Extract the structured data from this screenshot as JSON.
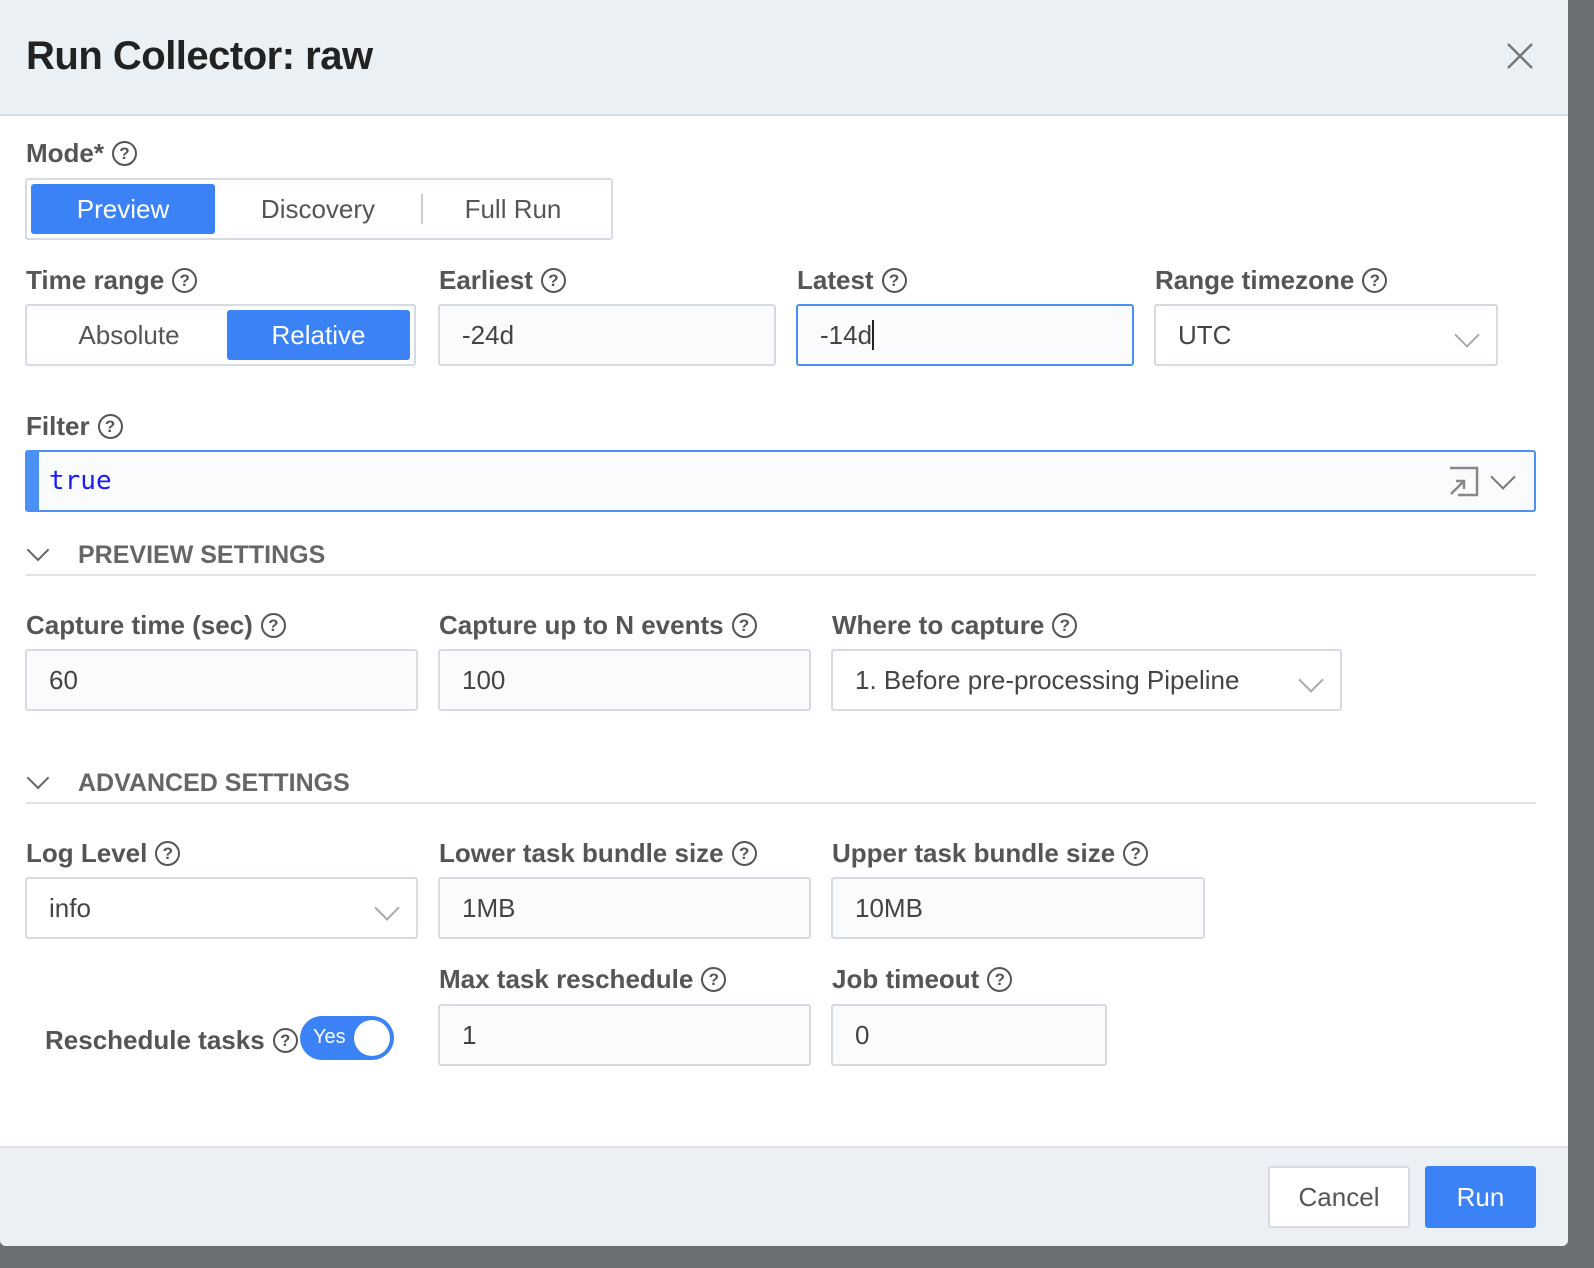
{
  "dialog": {
    "title": "Run Collector: raw"
  },
  "mode": {
    "label": "Mode*",
    "options": [
      "Preview",
      "Discovery",
      "Full Run"
    ],
    "selected": "Preview"
  },
  "time_range": {
    "label": "Time range",
    "options": [
      "Absolute",
      "Relative"
    ],
    "selected": "Relative"
  },
  "earliest": {
    "label": "Earliest",
    "value": "-24d"
  },
  "latest": {
    "label": "Latest",
    "value": "-14d"
  },
  "timezone": {
    "label": "Range timezone",
    "value": "UTC"
  },
  "filter": {
    "label": "Filter",
    "value": "true"
  },
  "preview_settings": {
    "title": "PREVIEW SETTINGS",
    "capture_time": {
      "label": "Capture time (sec)",
      "value": "60"
    },
    "capture_events": {
      "label": "Capture up to N events",
      "value": "100"
    },
    "where": {
      "label": "Where to capture",
      "value": "1. Before pre-processing Pipeline"
    }
  },
  "advanced_settings": {
    "title": "ADVANCED SETTINGS",
    "log_level": {
      "label": "Log Level",
      "value": "info"
    },
    "lower": {
      "label": "Lower task bundle size",
      "value": "1MB"
    },
    "upper": {
      "label": "Upper task bundle size",
      "value": "10MB"
    },
    "reschedule": {
      "label": "Reschedule tasks",
      "value": "Yes"
    },
    "max_reschedule": {
      "label": "Max task reschedule",
      "value": "1"
    },
    "job_timeout": {
      "label": "Job timeout",
      "value": "0"
    }
  },
  "footer": {
    "cancel": "Cancel",
    "run": "Run"
  },
  "colors": {
    "accent": "#3b82f6",
    "header_bg": "#ebf0f4",
    "filter_text": "#1a1aff"
  }
}
